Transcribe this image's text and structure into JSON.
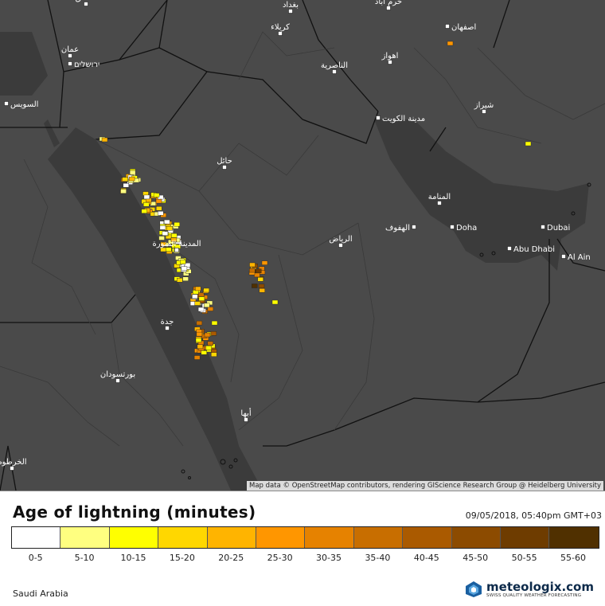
{
  "map": {
    "attribution": "Map data © OpenStreetMap contributors, rendering GIScience Research Group @ Heidelberg University",
    "cities": [
      {
        "name": "دمشق"
      },
      {
        "name": "بغداد"
      },
      {
        "name": "خرم آباد"
      },
      {
        "name": "كربلاء"
      },
      {
        "name": "اصفهان"
      },
      {
        "name": "عمان"
      },
      {
        "name": "ירושלים"
      },
      {
        "name": "اهواز"
      },
      {
        "name": "الناصرية"
      },
      {
        "name": "شيراز"
      },
      {
        "name": "السويس"
      },
      {
        "name": "مدينة الكويت"
      },
      {
        "name": "حائل"
      },
      {
        "name": "المنامة"
      },
      {
        "name": "الهفوف"
      },
      {
        "name": "Doha"
      },
      {
        "name": "Dubai"
      },
      {
        "name": "Abu Dhabi"
      },
      {
        "name": "الرياض"
      },
      {
        "name": "المدينة المنورة"
      },
      {
        "name": "Al Ain"
      },
      {
        "name": "جدة"
      },
      {
        "name": "بورتسودان"
      },
      {
        "name": "أبها"
      },
      {
        "name": "الخرطوم"
      }
    ]
  },
  "legend": {
    "title": "Age of lightning (minutes)",
    "timestamp": "09/05/2018, 05:40pm GMT+03",
    "classes": [
      {
        "label": "0-5",
        "color": "#ffffff"
      },
      {
        "label": "5-10",
        "color": "#ffff80"
      },
      {
        "label": "10-15",
        "color": "#ffff00"
      },
      {
        "label": "15-20",
        "color": "#ffd700"
      },
      {
        "label": "20-25",
        "color": "#ffb400"
      },
      {
        "label": "25-30",
        "color": "#ff9600"
      },
      {
        "label": "30-35",
        "color": "#e68200"
      },
      {
        "label": "35-40",
        "color": "#c86e00"
      },
      {
        "label": "40-45",
        "color": "#aa5a00"
      },
      {
        "label": "45-50",
        "color": "#8c4b00"
      },
      {
        "label": "50-55",
        "color": "#6e3c00"
      },
      {
        "label": "55-60",
        "color": "#503000"
      }
    ]
  },
  "footer": {
    "region": "Saudi Arabia",
    "brand": "meteologix.com",
    "tagline": "SWISS QUALITY WEATHER FORECASTING"
  }
}
